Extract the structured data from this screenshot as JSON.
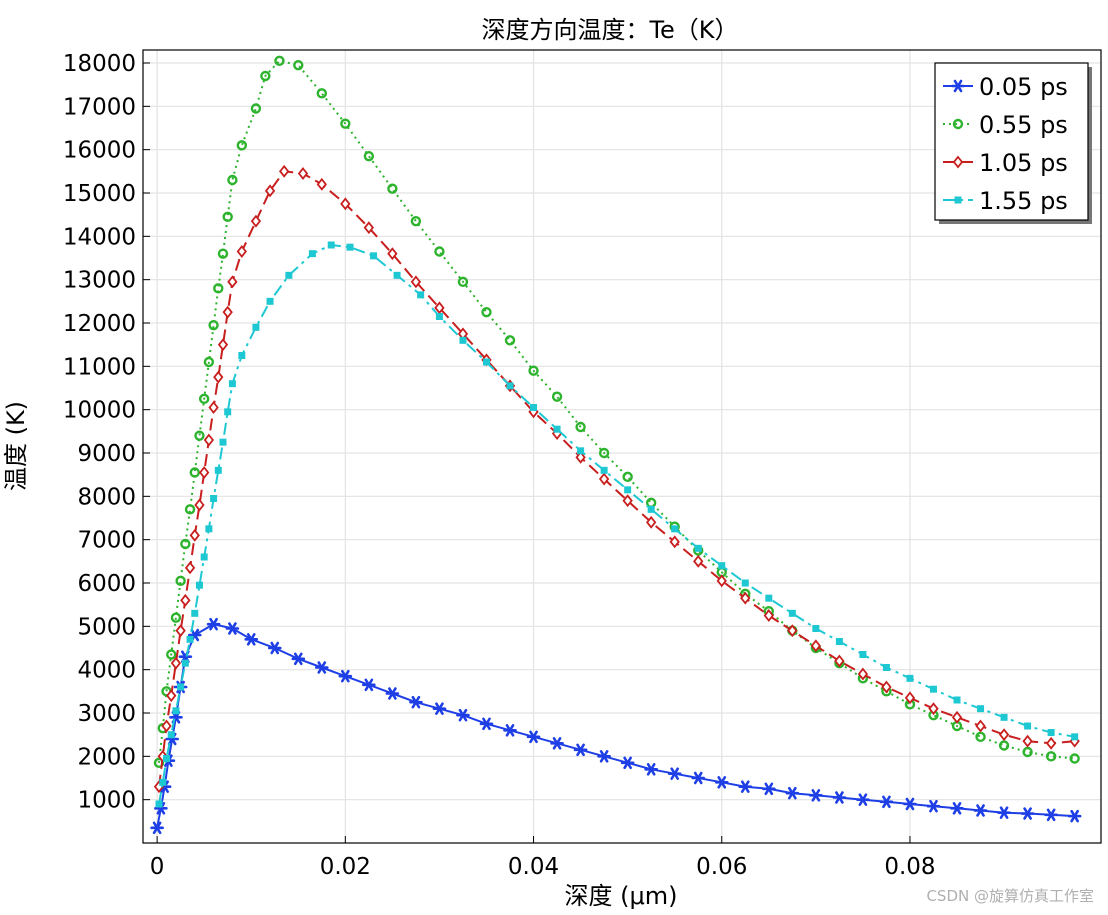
{
  "chart_data": {
    "type": "line",
    "title": "深度方向温度：Te（K）",
    "xlabel": "深度 (μm)",
    "ylabel": "温度 (K)",
    "xlim": [
      -0.0015,
      0.1003
    ],
    "ylim": [
      0,
      18300
    ],
    "x_ticks": [
      "0",
      "0.02",
      "0.04",
      "0.06",
      "0.08"
    ],
    "x_tick_values": [
      0,
      0.02,
      0.04,
      0.06,
      0.08
    ],
    "y_ticks": [
      "1000",
      "2000",
      "3000",
      "4000",
      "5000",
      "6000",
      "7000",
      "8000",
      "9000",
      "10000",
      "11000",
      "12000",
      "13000",
      "14000",
      "15000",
      "16000",
      "17000",
      "18000"
    ],
    "y_tick_values": [
      1000,
      2000,
      3000,
      4000,
      5000,
      6000,
      7000,
      8000,
      9000,
      10000,
      11000,
      12000,
      13000,
      14000,
      15000,
      16000,
      17000,
      18000
    ],
    "grid": true,
    "legend_position": "top-right",
    "series": [
      {
        "name": "0.05 ps",
        "color": "#1f3fe6",
        "dash": "solid",
        "marker": "asterisk",
        "x": [
          0,
          0.0004,
          0.0008,
          0.0012,
          0.0016,
          0.002,
          0.0025,
          0.003,
          0.004,
          0.006,
          0.008,
          0.01,
          0.0125,
          0.015,
          0.0175,
          0.02,
          0.0225,
          0.025,
          0.0275,
          0.03,
          0.0325,
          0.035,
          0.0375,
          0.04,
          0.0425,
          0.045,
          0.0475,
          0.05,
          0.0525,
          0.055,
          0.0575,
          0.06,
          0.0625,
          0.065,
          0.0675,
          0.07,
          0.0725,
          0.075,
          0.0775,
          0.08,
          0.0825,
          0.085,
          0.0875,
          0.09,
          0.0925,
          0.095,
          0.0975
        ],
        "y": [
          350,
          800,
          1300,
          1900,
          2400,
          2900,
          3600,
          4300,
          4800,
          5050,
          4950,
          4700,
          4500,
          4250,
          4050,
          3850,
          3650,
          3450,
          3250,
          3100,
          2950,
          2750,
          2600,
          2450,
          2300,
          2150,
          2000,
          1850,
          1700,
          1600,
          1500,
          1400,
          1300,
          1250,
          1150,
          1100,
          1050,
          1000,
          950,
          900,
          850,
          800,
          750,
          700,
          680,
          650,
          620
        ]
      },
      {
        "name": "0.55 ps",
        "color": "#2db32d",
        "dash": "dotted",
        "marker": "circle",
        "x": [
          0.0002,
          0.0006,
          0.001,
          0.0015,
          0.002,
          0.0025,
          0.003,
          0.0035,
          0.004,
          0.0045,
          0.005,
          0.0055,
          0.006,
          0.0065,
          0.007,
          0.0075,
          0.008,
          0.009,
          0.0105,
          0.0115,
          0.013,
          0.015,
          0.0175,
          0.02,
          0.0225,
          0.025,
          0.0275,
          0.03,
          0.0325,
          0.035,
          0.0375,
          0.04,
          0.0425,
          0.045,
          0.0475,
          0.05,
          0.0525,
          0.055,
          0.0575,
          0.06,
          0.0625,
          0.065,
          0.0675,
          0.07,
          0.0725,
          0.075,
          0.0775,
          0.08,
          0.0825,
          0.085,
          0.0875,
          0.09,
          0.0925,
          0.095,
          0.0975
        ],
        "y": [
          1850,
          2650,
          3500,
          4350,
          5200,
          6050,
          6900,
          7700,
          8550,
          9400,
          10250,
          11100,
          11950,
          12800,
          13600,
          14450,
          15300,
          16100,
          16950,
          17700,
          18050,
          17950,
          17300,
          16600,
          15850,
          15100,
          14350,
          13650,
          12950,
          12250,
          11600,
          10900,
          10300,
          9600,
          9000,
          8450,
          7850,
          7300,
          6750,
          6250,
          5750,
          5350,
          4900,
          4500,
          4150,
          3800,
          3500,
          3200,
          2950,
          2700,
          2450,
          2250,
          2100,
          2000,
          1950
        ]
      },
      {
        "name": "1.05 ps",
        "color": "#c81e1e",
        "dash": "dashed",
        "marker": "diamond",
        "x": [
          0.0002,
          0.0006,
          0.001,
          0.0015,
          0.002,
          0.0025,
          0.003,
          0.0035,
          0.004,
          0.0045,
          0.005,
          0.0055,
          0.006,
          0.0065,
          0.007,
          0.0075,
          0.008,
          0.009,
          0.0105,
          0.012,
          0.0135,
          0.0155,
          0.0175,
          0.02,
          0.0225,
          0.025,
          0.0275,
          0.03,
          0.0325,
          0.035,
          0.0375,
          0.04,
          0.0425,
          0.045,
          0.0475,
          0.05,
          0.0525,
          0.055,
          0.0575,
          0.06,
          0.0625,
          0.065,
          0.0675,
          0.07,
          0.0725,
          0.075,
          0.0775,
          0.08,
          0.0825,
          0.085,
          0.0875,
          0.09,
          0.0925,
          0.095,
          0.0975
        ],
        "y": [
          1300,
          2000,
          2700,
          3400,
          4150,
          4900,
          5600,
          6350,
          7100,
          7800,
          8550,
          9300,
          10050,
          10750,
          11500,
          12250,
          12950,
          13650,
          14350,
          15050,
          15500,
          15450,
          15200,
          14750,
          14200,
          13600,
          12950,
          12350,
          11750,
          11150,
          10550,
          9950,
          9450,
          8900,
          8400,
          7900,
          7400,
          6950,
          6500,
          6050,
          5650,
          5250,
          4900,
          4550,
          4200,
          3900,
          3600,
          3350,
          3100,
          2900,
          2700,
          2500,
          2350,
          2300,
          2350
        ]
      },
      {
        "name": "1.55 ps",
        "color": "#1ec8d2",
        "dash": "dashdot",
        "marker": "square",
        "x": [
          0.0002,
          0.0006,
          0.001,
          0.0015,
          0.002,
          0.0025,
          0.003,
          0.0035,
          0.004,
          0.0045,
          0.005,
          0.0055,
          0.006,
          0.0065,
          0.007,
          0.0075,
          0.008,
          0.009,
          0.0105,
          0.012,
          0.014,
          0.0165,
          0.0185,
          0.0205,
          0.023,
          0.0255,
          0.028,
          0.03,
          0.0325,
          0.035,
          0.0375,
          0.04,
          0.0425,
          0.045,
          0.0475,
          0.05,
          0.0525,
          0.055,
          0.0575,
          0.06,
          0.0625,
          0.065,
          0.0675,
          0.07,
          0.0725,
          0.075,
          0.0775,
          0.08,
          0.0825,
          0.085,
          0.0875,
          0.09,
          0.0925,
          0.095,
          0.0975
        ],
        "y": [
          900,
          1400,
          1950,
          2500,
          3050,
          3600,
          4150,
          4700,
          5300,
          5950,
          6600,
          7250,
          7950,
          8600,
          9250,
          9950,
          10600,
          11250,
          11900,
          12500,
          13100,
          13600,
          13800,
          13750,
          13550,
          13100,
          12650,
          12150,
          11600,
          11100,
          10550,
          10050,
          9550,
          9050,
          8600,
          8150,
          7700,
          7250,
          6800,
          6400,
          6000,
          5650,
          5300,
          4950,
          4650,
          4350,
          4050,
          3800,
          3550,
          3300,
          3100,
          2900,
          2700,
          2550,
          2450
        ]
      }
    ]
  },
  "watermark": "CSDN @旋算仿真工作室"
}
